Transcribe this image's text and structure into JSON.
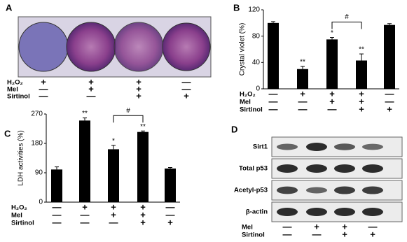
{
  "panel_a": {
    "label": "A",
    "conditions": [
      {
        "name": "H₂O₂",
        "signs": [
          "+",
          "+",
          "+",
          "—"
        ]
      },
      {
        "name": "Mel",
        "signs": [
          "—",
          "+",
          "+",
          "—"
        ]
      },
      {
        "name": "Sirtinol",
        "signs": [
          "—",
          "—",
          "+",
          "+"
        ]
      }
    ]
  },
  "chart_data": [
    {
      "type": "bar",
      "label": "B",
      "y_label": "Crystal violet (%)",
      "values": [
        100,
        30,
        75,
        43,
        97
      ],
      "errors": [
        2,
        4,
        3,
        10,
        2
      ],
      "significance": [
        null,
        "**",
        "*",
        "**",
        null
      ],
      "bracket": {
        "from": 2,
        "to": 3,
        "label": "#"
      },
      "color": "#000000",
      "ylim": [
        0,
        120
      ],
      "yticks": [
        0,
        40,
        80,
        120
      ],
      "conditions": [
        {
          "name": "H₂O₂",
          "signs": [
            "—",
            "+",
            "+",
            "+",
            "—"
          ]
        },
        {
          "name": "Mel",
          "signs": [
            "—",
            "—",
            "+",
            "+",
            "—"
          ]
        },
        {
          "name": "Sirtinol",
          "signs": [
            "—",
            "—",
            "—",
            "+",
            "+"
          ]
        }
      ]
    },
    {
      "type": "bar",
      "label": "C",
      "y_label": "LDH activities (%)",
      "values": [
        100,
        250,
        162,
        215,
        103
      ],
      "errors": [
        8,
        8,
        12,
        3,
        3
      ],
      "significance": [
        null,
        "**",
        "*",
        "**",
        null
      ],
      "bracket": {
        "from": 2,
        "to": 3,
        "label": "#"
      },
      "color": "#000000",
      "ylim": [
        0,
        270
      ],
      "yticks": [
        0,
        90,
        180,
        270
      ],
      "conditions": [
        {
          "name": "H₂O₂",
          "signs": [
            "—",
            "+",
            "+",
            "+",
            "—"
          ]
        },
        {
          "name": "Mel",
          "signs": [
            "—",
            "—",
            "+",
            "+",
            "—"
          ]
        },
        {
          "name": "Sirtinol",
          "signs": [
            "—",
            "—",
            "—",
            "+",
            "+"
          ]
        }
      ]
    }
  ],
  "panel_d": {
    "label": "D",
    "rows": [
      "Sirt1",
      "Total p53",
      "Acetyl-p53",
      "β-actin"
    ],
    "conditions": [
      {
        "name": "Mel",
        "signs": [
          "—",
          "+",
          "+",
          "—"
        ]
      },
      {
        "name": "Sirtinol",
        "signs": [
          "—",
          "—",
          "+",
          "+"
        ]
      }
    ]
  }
}
